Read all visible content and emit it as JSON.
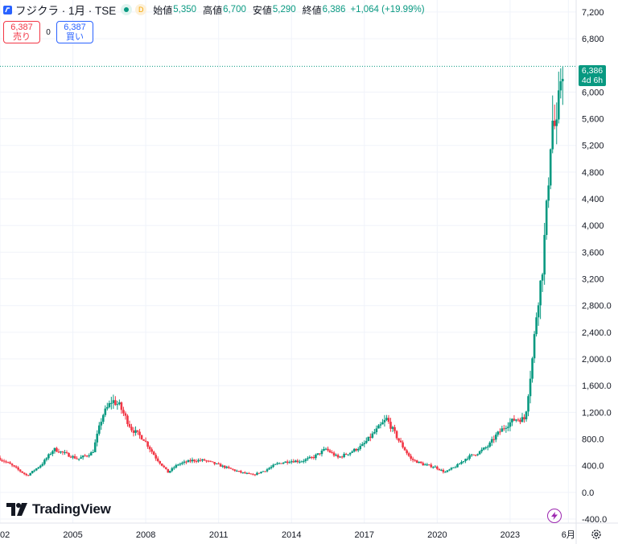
{
  "legend": {
    "title": "フジクラ · 1月 · TSE",
    "badge_d": "D",
    "open_label": "始値",
    "open_value": "5,350",
    "high_label": "高値",
    "high_value": "6,700",
    "low_label": "安値",
    "low_value": "5,290",
    "close_label": "終値",
    "close_value": "6,386",
    "change": "+1,064 (+19.99%)"
  },
  "trade": {
    "sell_price": "6,387",
    "sell_label": "売り",
    "spread": "0",
    "buy_price": "6,387",
    "buy_label": "買い"
  },
  "price_tag": {
    "price": "6,386",
    "countdown": "4d 6h"
  },
  "branding": {
    "logo_text": "TradingView"
  },
  "colors": {
    "up": "#089981",
    "down": "#f23645",
    "accent": "#2962ff",
    "grid": "#f0f3fa"
  },
  "chart_data": {
    "type": "candlestick",
    "interval": "monthly",
    "y_axis_position": "right",
    "y_ticks": [
      "7,200",
      "6,800",
      "6,000",
      "5,600",
      "5,200",
      "4,800",
      "4,400",
      "4,000",
      "3,600",
      "3,200",
      "2,800.0",
      "2,400.0",
      "2,000.0",
      "1,600.0",
      "1,200.0",
      "800.0",
      "400.0",
      "0.0",
      "-400.0"
    ],
    "y_tick_values": [
      7200,
      6800,
      6000,
      5600,
      5200,
      4800,
      4400,
      4000,
      3600,
      3200,
      2800,
      2400,
      2000,
      1600,
      1200,
      800,
      400,
      0,
      -400
    ],
    "x_ticks": [
      "02",
      "2005",
      "2008",
      "2011",
      "2014",
      "2017",
      "2020",
      "2023",
      "6月"
    ],
    "x_tick_values": [
      2002.0,
      2005.0,
      2008.0,
      2011.0,
      2014.0,
      2017.0,
      2020.0,
      2023.0,
      2025.4
    ],
    "ylim": [
      -460,
      7380
    ],
    "xlim": [
      2002.0,
      2025.72
    ],
    "last_price": 6386,
    "price_points": [
      [
        2002.0,
        520
      ],
      [
        2002.5,
        420
      ],
      [
        2003.2,
        250
      ],
      [
        2003.8,
        420
      ],
      [
        2004.3,
        650
      ],
      [
        2004.9,
        560
      ],
      [
        2005.3,
        500
      ],
      [
        2005.9,
        600
      ],
      [
        2006.3,
        1150
      ],
      [
        2006.7,
        1380
      ],
      [
        2007.0,
        1300
      ],
      [
        2007.5,
        950
      ],
      [
        2008.0,
        800
      ],
      [
        2008.5,
        520
      ],
      [
        2009.0,
        300
      ],
      [
        2009.4,
        420
      ],
      [
        2010.0,
        480
      ],
      [
        2010.5,
        480
      ],
      [
        2011.0,
        420
      ],
      [
        2011.5,
        360
      ],
      [
        2012.0,
        300
      ],
      [
        2012.5,
        260
      ],
      [
        2013.0,
        330
      ],
      [
        2013.5,
        430
      ],
      [
        2014.0,
        470
      ],
      [
        2014.5,
        470
      ],
      [
        2015.0,
        530
      ],
      [
        2015.5,
        650
      ],
      [
        2016.0,
        520
      ],
      [
        2016.5,
        600
      ],
      [
        2017.0,
        700
      ],
      [
        2017.5,
        900
      ],
      [
        2018.0,
        1100
      ],
      [
        2018.5,
        780
      ],
      [
        2019.0,
        500
      ],
      [
        2019.5,
        420
      ],
      [
        2020.0,
        380
      ],
      [
        2020.4,
        300
      ],
      [
        2020.9,
        400
      ],
      [
        2021.3,
        520
      ],
      [
        2021.8,
        600
      ],
      [
        2022.2,
        700
      ],
      [
        2022.5,
        850
      ],
      [
        2022.9,
        1000
      ],
      [
        2023.3,
        1100
      ],
      [
        2023.7,
        1100
      ],
      [
        2024.0,
        2000
      ],
      [
        2024.2,
        2800
      ],
      [
        2024.4,
        3300
      ],
      [
        2024.6,
        4300
      ],
      [
        2024.8,
        5600
      ],
      [
        2025.0,
        5400
      ],
      [
        2025.2,
        6386
      ]
    ]
  }
}
